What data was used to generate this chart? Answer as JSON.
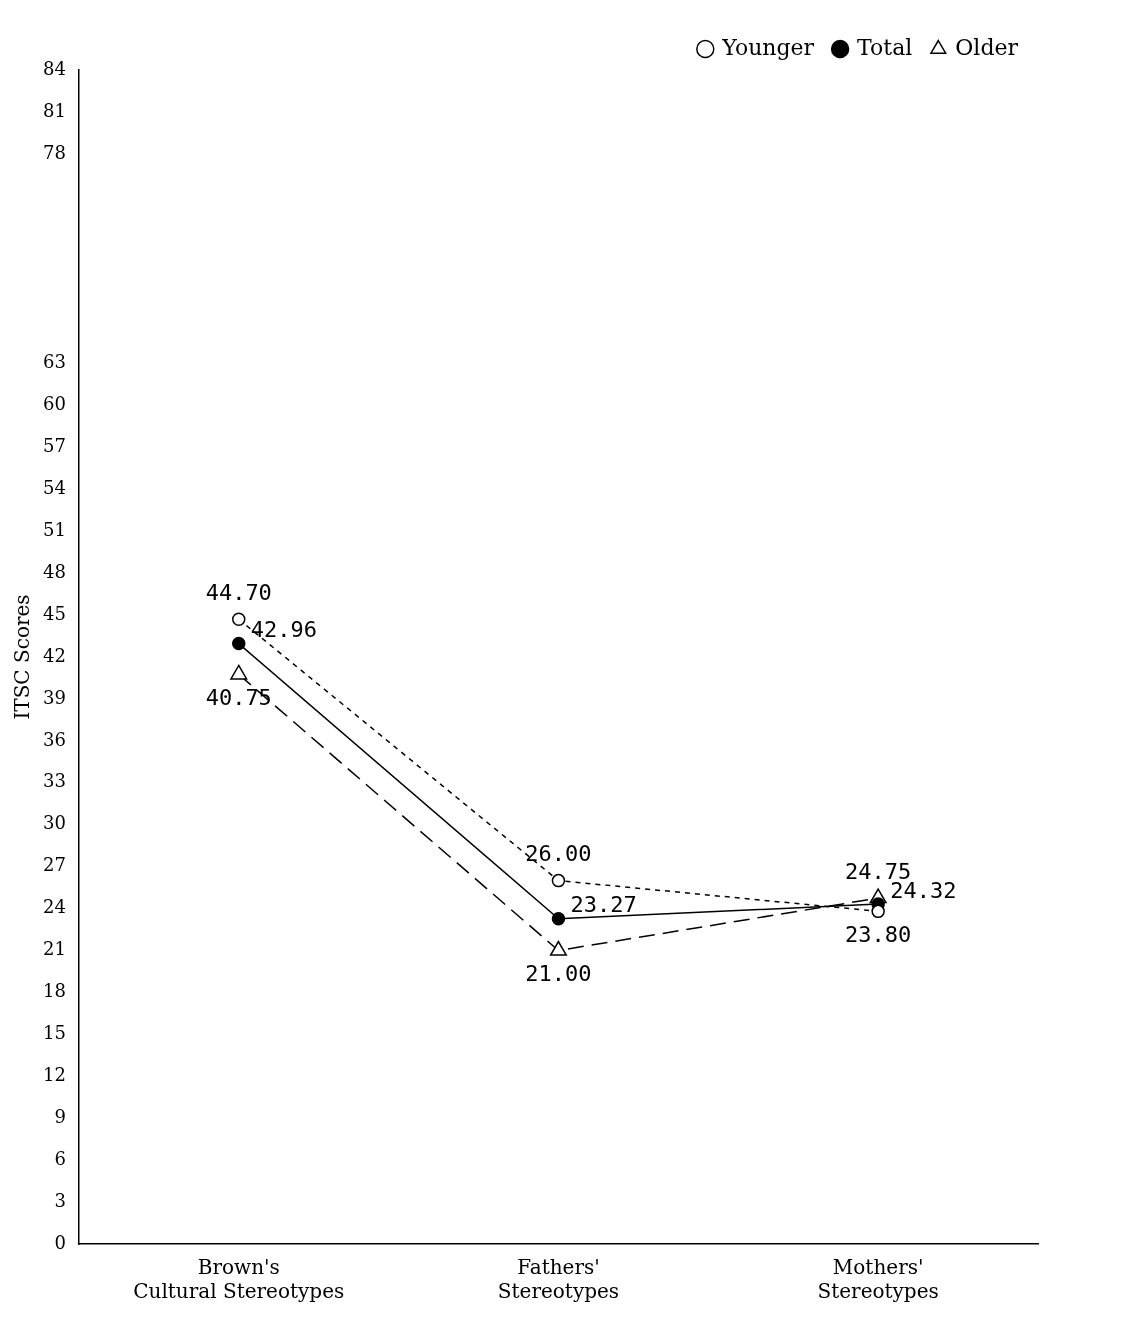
{
  "chart_data": {
    "type": "line",
    "ylabel": "ITSC Scores",
    "categories": [
      "Brown's\nCultural Stereotypes",
      "Fathers'\nStereotypes",
      "Mothers'\nStereotypes"
    ],
    "series": [
      {
        "name": "Younger",
        "color": "#000000",
        "values": [
          44.7,
          26.0,
          23.8
        ],
        "value_labels": [
          "44.70",
          "26.00",
          "23.80"
        ],
        "marker": "circle",
        "line_style": "dotted"
      },
      {
        "name": "Total",
        "color": "#000000",
        "values": [
          42.96,
          23.27,
          24.32
        ],
        "value_labels": [
          "42.96",
          "23.27",
          "24.32"
        ],
        "marker": "circle",
        "line_style": "solid"
      },
      {
        "name": "Older",
        "color": "#000000",
        "values": [
          40.75,
          21.0,
          24.75
        ],
        "value_labels": [
          "40.75",
          "21.00",
          "24.75"
        ],
        "marker": "triangle",
        "line_style": "dashed"
      }
    ],
    "ylim": [
      0,
      84
    ],
    "yticks": [
      0,
      3,
      6,
      9,
      12,
      15,
      18,
      21,
      24,
      27,
      30,
      33,
      36,
      39,
      42,
      45,
      48,
      51,
      54,
      57,
      60,
      63,
      78,
      81,
      84
    ],
    "grid": false,
    "legend": "top right"
  }
}
